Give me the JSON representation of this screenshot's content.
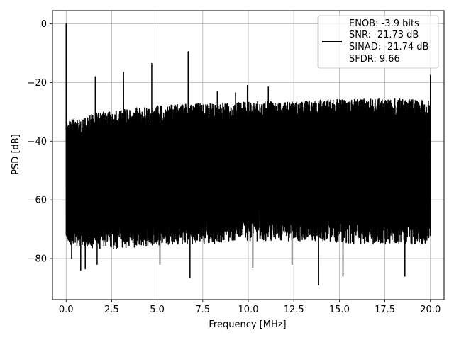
{
  "chart_data": {
    "type": "line",
    "xlabel": "Frequency [MHz]",
    "ylabel": "PSD [dB]",
    "xlim": [
      -0.75,
      20.75
    ],
    "ylim": [
      -94,
      4.5
    ],
    "x_ticks": [
      0.0,
      2.5,
      5.0,
      7.5,
      10.0,
      12.5,
      15.0,
      17.5,
      20.0
    ],
    "x_tick_labels": [
      "0.0",
      "2.5",
      "5.0",
      "7.5",
      "10.0",
      "12.5",
      "15.0",
      "17.5",
      "20.0"
    ],
    "y_ticks": [
      0,
      -20,
      -40,
      -60,
      -80
    ],
    "y_tick_labels": [
      "0",
      "−20",
      "−40",
      "−60",
      "−80"
    ],
    "grid": true,
    "legend_position": "top-right",
    "line_color": "#000000",
    "legend": {
      "lines": [
        "ENOB: -3.9 bits",
        "SNR: -21.73 dB",
        "SINAD: -21.74 dB",
        "SFDR: 9.66"
      ]
    },
    "series": [
      {
        "x_range": [
          0,
          20
        ],
        "noise_floor_upper": [
          -33,
          -30,
          -28.5,
          -27.5,
          -27,
          -26.5,
          -26.5,
          -26,
          -25.5,
          -25.5,
          -26
        ],
        "noise_floor_lower": [
          -72,
          -74,
          -73,
          -72,
          -72,
          -71,
          -71,
          -71,
          -72,
          -72,
          -72
        ],
        "peaks": [
          {
            "x": 0.0,
            "y": 0
          },
          {
            "x": 1.6,
            "y": -18
          },
          {
            "x": 3.15,
            "y": -16.5
          },
          {
            "x": 4.7,
            "y": -13.5
          },
          {
            "x": 6.7,
            "y": -9.5
          },
          {
            "x": 8.3,
            "y": -23
          },
          {
            "x": 9.3,
            "y": -23.5
          },
          {
            "x": 9.95,
            "y": -21
          },
          {
            "x": 11.1,
            "y": -21.5
          },
          {
            "x": 20.0,
            "y": -17.5
          }
        ],
        "dips": [
          {
            "x": 0.3,
            "y": -80
          },
          {
            "x": 0.8,
            "y": -84
          },
          {
            "x": 1.05,
            "y": -83.5
          },
          {
            "x": 1.7,
            "y": -82
          },
          {
            "x": 5.15,
            "y": -82
          },
          {
            "x": 6.8,
            "y": -86.5
          },
          {
            "x": 10.25,
            "y": -83
          },
          {
            "x": 12.4,
            "y": -82
          },
          {
            "x": 13.85,
            "y": -89
          },
          {
            "x": 15.2,
            "y": -86
          },
          {
            "x": 18.6,
            "y": -86
          }
        ]
      }
    ]
  }
}
